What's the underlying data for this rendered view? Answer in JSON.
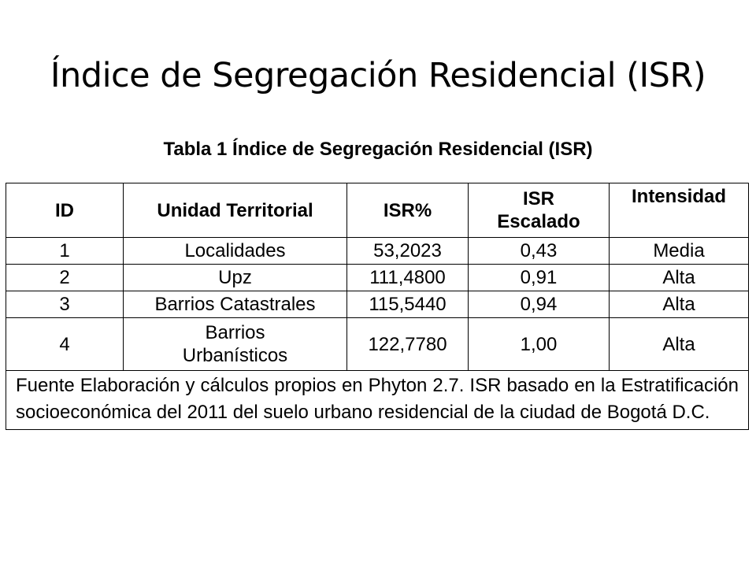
{
  "title": "Índice de Segregación Residencial (ISR)",
  "table": {
    "caption": "Tabla 1 Índice de Segregación Residencial (ISR)",
    "headers": {
      "id": "ID",
      "unit": "Unidad Territorial",
      "isr_pct": "ISR%",
      "isr_scaled_line1": "ISR",
      "isr_scaled_line2": "Escalado",
      "intensity": "Intensidad"
    },
    "rows": [
      {
        "id": "1",
        "unit": "Localidades",
        "isr_pct": "53,2023",
        "isr_scaled": "0,43",
        "intensity": "Media"
      },
      {
        "id": "2",
        "unit": "Upz",
        "isr_pct": "111,4800",
        "isr_scaled": "0,91",
        "intensity": "Alta"
      },
      {
        "id": "3",
        "unit": "Barrios Catastrales",
        "isr_pct": "115,5440",
        "isr_scaled": "0,94",
        "intensity": "Alta"
      },
      {
        "id": "4",
        "unit_line1": "Barrios",
        "unit_line2": "Urbanísticos",
        "isr_pct": "122,7780",
        "isr_scaled": "1,00",
        "intensity": "Alta"
      }
    ],
    "source_note": "Fuente  Elaboración y cálculos propios en Phyton 2.7.  ISR basado en la Estratificación socioeconómica del 2011 del suelo urbano residencial de la ciudad de Bogotá D.C."
  }
}
